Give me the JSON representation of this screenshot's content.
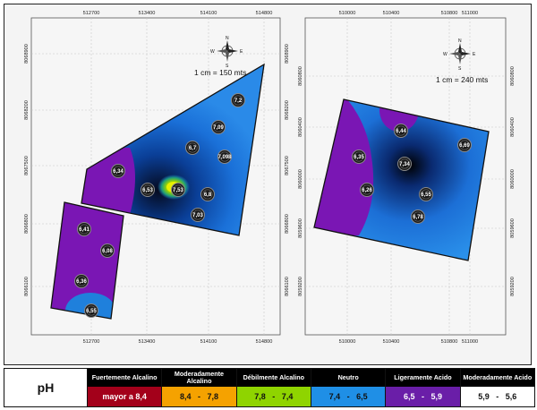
{
  "maps": [
    {
      "id": "left",
      "scale_text": "1 cm = 150 mts",
      "x_ticks": [
        "512700",
        "513400",
        "514100",
        "514800"
      ],
      "y_ticks": [
        "8066100",
        "8066800",
        "8067500",
        "8068200",
        "8068900"
      ],
      "points": [
        {
          "label": "7,2",
          "class": "Neutro"
        },
        {
          "label": "7,09",
          "class": "Neutro"
        },
        {
          "label": "6,7",
          "class": "Neutro"
        },
        {
          "label": "7,098",
          "class": "Neutro"
        },
        {
          "label": "6,34",
          "class": "Ligeramente Acido"
        },
        {
          "label": "6,53",
          "class": "Neutro"
        },
        {
          "label": "7,53",
          "class": "Débilmente Alcalino"
        },
        {
          "label": "6,8",
          "class": "Neutro"
        },
        {
          "label": "7,03",
          "class": "Neutro"
        },
        {
          "label": "6,41",
          "class": "Ligeramente Acido"
        },
        {
          "label": "6,08",
          "class": "Ligeramente Acido"
        },
        {
          "label": "6,36",
          "class": "Ligeramente Acido"
        },
        {
          "label": "6,55",
          "class": "Neutro"
        }
      ]
    },
    {
      "id": "right",
      "scale_text": "1 cm = 240 mts",
      "x_ticks": [
        "510000",
        "510400",
        "510800",
        "511000"
      ],
      "y_ticks": [
        "8059200",
        "8059600",
        "8060000",
        "8060400",
        "8060800"
      ],
      "points": [
        {
          "label": "6,44",
          "class": "Ligeramente Acido"
        },
        {
          "label": "6,69",
          "class": "Neutro"
        },
        {
          "label": "6,35",
          "class": "Ligeramente Acido"
        },
        {
          "label": "7,34",
          "class": "Neutro"
        },
        {
          "label": "6,26",
          "class": "Ligeramente Acido"
        },
        {
          "label": "6,55",
          "class": "Neutro"
        },
        {
          "label": "6,78",
          "class": "Neutro"
        }
      ]
    }
  ],
  "compass": {
    "n": "N",
    "s": "S",
    "e": "E",
    "w": "W"
  },
  "legend": {
    "title": "pH",
    "classes": [
      {
        "name": "Fuertemente Alcalino",
        "range": "mayor a 8,4",
        "color": "#a3001a",
        "text_color": "#ffffff"
      },
      {
        "name": "Moderadamente Alcalino",
        "range": "8,4   -   7,8",
        "color": "#f5a200",
        "text_color": "#111111"
      },
      {
        "name": "Débilmente Alcalino",
        "range": "7,8   -   7,4",
        "color": "#8fd400",
        "text_color": "#111111"
      },
      {
        "name": "Neutro",
        "range": "7,4   -   6,5",
        "color": "#1f8fe6",
        "text_color": "#111111"
      },
      {
        "name": "Ligeramente Acido",
        "range": "6,5   -   5,9",
        "color": "#6a1ea8",
        "text_color": "#ffffff"
      },
      {
        "name": "Moderadamente Acido",
        "range": "5,9   -   5,6",
        "color": "#ffffff",
        "text_color": "#111111"
      }
    ]
  }
}
